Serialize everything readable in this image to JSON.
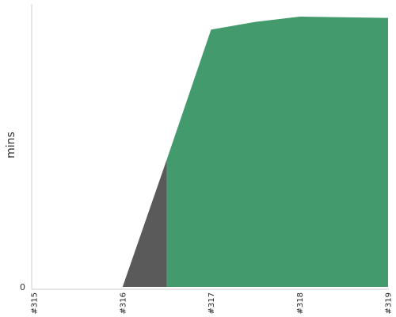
{
  "chart_data": {
    "type": "area",
    "title": "",
    "xlabel": "",
    "ylabel": "mins",
    "categories": [
      "#315",
      "#316",
      "#317",
      "#318",
      "#319"
    ],
    "y_tick_labels": [
      "0"
    ],
    "grid": false,
    "legend": "none",
    "x_domain": [
      0,
      4
    ],
    "y_domain": [
      0,
      1
    ],
    "series": [
      {
        "color": "#5a5a5a",
        "points": [
          [
            0,
            0
          ],
          [
            1,
            0
          ],
          [
            1.5,
            0.49
          ],
          [
            1.5,
            0
          ]
        ]
      },
      {
        "color": "#439b6d",
        "points": [
          [
            1.5,
            0
          ],
          [
            1.5,
            0.49
          ],
          [
            2,
            0.99
          ],
          [
            2.5,
            1.02
          ],
          [
            3,
            1.04
          ],
          [
            4,
            1.035
          ],
          [
            4,
            0
          ]
        ]
      }
    ]
  }
}
